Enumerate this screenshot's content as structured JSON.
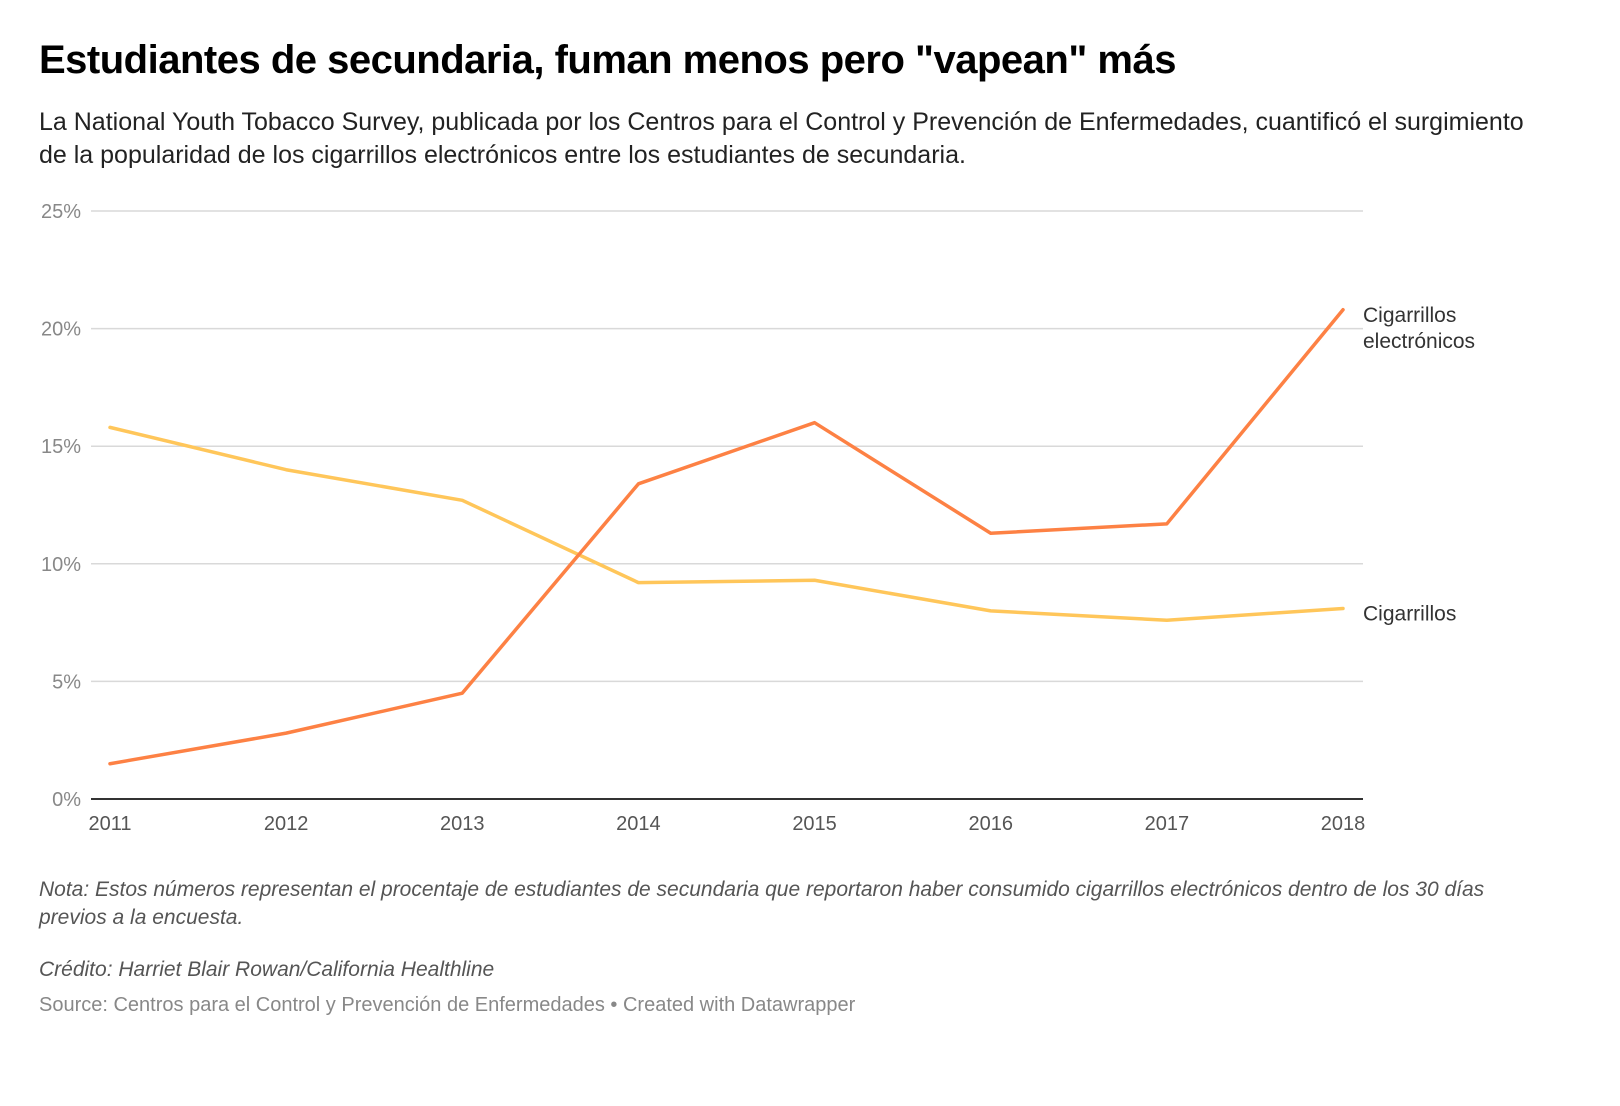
{
  "title": "Estudiantes de secundaria, fuman menos pero \"vapean\" más",
  "subtitle": "La National Youth Tobacco Survey, publicada por los Centros para el Control y Prevención de Enfermedades, cuantificó el surgimiento de la popularidad de los cigarrillos electrónicos entre los estudiantes de secundaria.",
  "note": "Nota: Estos números representan el procentaje de estudiantes de secundaria que reportaron haber consumido cigarrillos electrónicos dentro de los 30 días previos a la encuesta.",
  "credit": "Crédito: Harriet Blair Rowan/California Healthline",
  "source": "Source: Centros para el Control y Prevención de Enfermedades • Created with Datawrapper",
  "chart_data": {
    "type": "line",
    "x": [
      2011,
      2012,
      2013,
      2014,
      2015,
      2016,
      2017,
      2018
    ],
    "x_tick_labels": [
      "2011",
      "2012",
      "2013",
      "2014",
      "2015",
      "2016",
      "2017",
      "2018"
    ],
    "ylim": [
      0,
      25
    ],
    "y_ticks": [
      0,
      5,
      10,
      15,
      20,
      25
    ],
    "y_tick_labels": [
      "0%",
      "5%",
      "10%",
      "15%",
      "20%",
      "25%"
    ],
    "grid": true,
    "legend": "direct labels at line ends (right)",
    "series": [
      {
        "name": "Cigarrillos electrónicos",
        "label_lines": [
          "Cigarrillos",
          "electrónicos"
        ],
        "color": "#fd8144",
        "values": [
          1.5,
          2.8,
          4.5,
          13.4,
          16.0,
          11.3,
          11.7,
          20.8
        ]
      },
      {
        "name": "Cigarrillos",
        "label_lines": [
          "Cigarrillos"
        ],
        "color": "#ffc65a",
        "values": [
          15.8,
          14.0,
          12.7,
          9.2,
          9.3,
          8.0,
          7.6,
          8.1
        ]
      }
    ]
  }
}
